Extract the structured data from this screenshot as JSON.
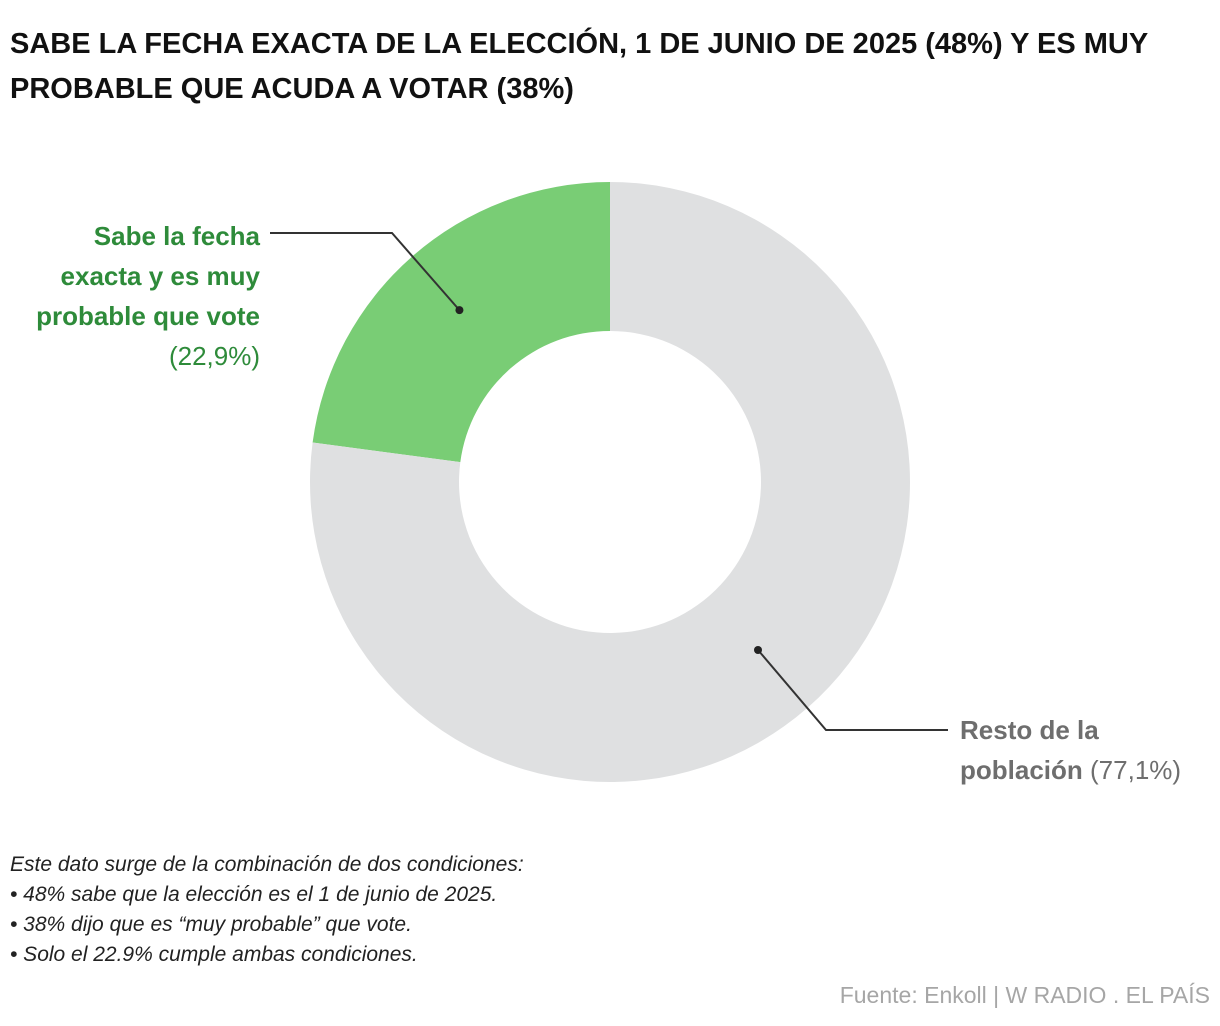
{
  "title": "SABE LA FECHA EXACTA DE LA ELECCIÓN, 1 DE JUNIO DE 2025 (48%) Y ES MUY PROBABLE QUE ACUDA A VOTAR (38%)",
  "chart_data": {
    "type": "pie",
    "subtype": "donut",
    "title": "SABE LA FECHA EXACTA DE LA ELECCIÓN, 1 DE JUNIO DE 2025 (48%) Y ES MUY PROBABLE QUE ACUDA A VOTAR (38%)",
    "slices": [
      {
        "label": "Sabe la fecha exacta y es muy probable que vote",
        "value": 22.9,
        "value_label": "(22,9%)",
        "color": "#79cd75",
        "label_color": "#2e8b3a"
      },
      {
        "label": "Resto de la población",
        "value": 77.1,
        "value_label": "(77,1%)",
        "color": "#dfe0e1",
        "label_color": "#6e6e6e"
      }
    ],
    "start": "top, counter-clockwise for first slice"
  },
  "labels": {
    "green": {
      "line1": "Sabe la fecha",
      "line2": "exacta y es muy",
      "line3": "probable que vote",
      "pct": "(22,9%)"
    },
    "gray": {
      "line1": "Resto de la",
      "line2": "población",
      "pct": "(77,1%)"
    }
  },
  "note": {
    "intro": "Este dato surge de la combinación de dos condiciones:",
    "items": [
      "• 48% sabe que la elección es el 1 de junio de 2025.",
      "• 38% dijo que es “muy probable” que vote.",
      "• Solo el 22.9% cumple ambas condiciones."
    ]
  },
  "source": "Fuente: Enkoll | W RADIO . EL PAÍS"
}
